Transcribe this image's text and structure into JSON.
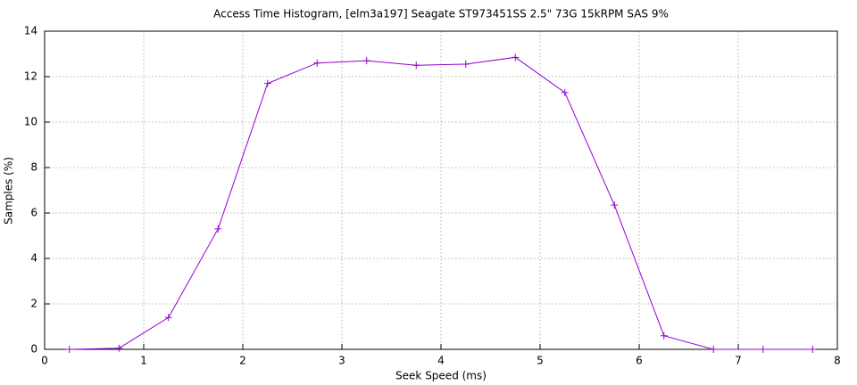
{
  "chart_data": {
    "type": "line",
    "title": "Access Time Histogram, [elm3a197] Seagate ST973451SS 2.5\" 73G 15kRPM SAS 9%",
    "x_label": "Seek Speed (ms)",
    "y_label": "Samples (%)",
    "x": [
      0.25,
      0.75,
      1.25,
      1.75,
      2.25,
      2.75,
      3.25,
      3.75,
      4.25,
      4.75,
      5.25,
      5.75,
      6.25,
      6.75,
      7.25,
      7.75
    ],
    "series": [
      {
        "name": "",
        "color": "#9400d3",
        "values": [
          0,
          0.05,
          1.4,
          5.3,
          11.7,
          12.6,
          12.7,
          12.5,
          12.55,
          12.85,
          11.3,
          6.35,
          0.6,
          0,
          0,
          0
        ]
      }
    ],
    "xlim": [
      0,
      8
    ],
    "ylim": [
      0,
      14
    ],
    "xticks": [
      0,
      1,
      2,
      3,
      4,
      5,
      6,
      7,
      8
    ],
    "yticks": [
      0,
      2,
      4,
      6,
      8,
      10,
      12,
      14
    ],
    "grid": true
  }
}
